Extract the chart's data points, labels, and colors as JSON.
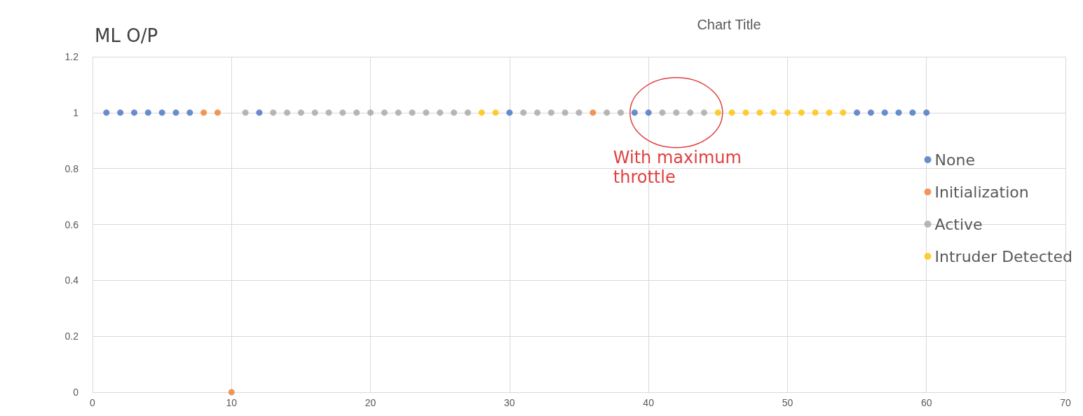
{
  "chart_data": {
    "type": "scatter",
    "title": "Chart Title",
    "ylabel": "ML O/P",
    "series": [
      {
        "name": "None",
        "color": "#4472c4",
        "x": [
          1,
          2,
          3,
          4,
          5,
          6,
          7,
          12,
          30,
          39,
          40,
          55,
          56,
          57,
          58,
          59,
          60
        ],
        "values": [
          1,
          1,
          1,
          1,
          1,
          1,
          1,
          1,
          1,
          1,
          1,
          1,
          1,
          1,
          1,
          1,
          1
        ]
      },
      {
        "name": "Initialization",
        "color": "#ed7d31",
        "x": [
          8,
          9,
          10,
          36
        ],
        "values": [
          1,
          1,
          0,
          1
        ]
      },
      {
        "name": "Active",
        "color": "#a5a5a5",
        "x": [
          11,
          13,
          14,
          15,
          16,
          17,
          18,
          19,
          20,
          21,
          22,
          23,
          24,
          25,
          26,
          27,
          31,
          32,
          33,
          34,
          35,
          37,
          38,
          41,
          42,
          43,
          44
        ],
        "values": [
          1,
          1,
          1,
          1,
          1,
          1,
          1,
          1,
          1,
          1,
          1,
          1,
          1,
          1,
          1,
          1,
          1,
          1,
          1,
          1,
          1,
          1,
          1,
          1,
          1,
          1,
          1
        ]
      },
      {
        "name": "Intruder Detected",
        "color": "#ffc000",
        "x": [
          28,
          29,
          45,
          46,
          47,
          48,
          49,
          50,
          51,
          52,
          53,
          54
        ],
        "values": [
          1,
          1,
          1,
          1,
          1,
          1,
          1,
          1,
          1,
          1,
          1,
          1
        ]
      }
    ],
    "xlim": [
      0,
      70
    ],
    "xticks": [
      0,
      10,
      20,
      30,
      40,
      50,
      60,
      70
    ],
    "ylim": [
      0,
      1.2
    ],
    "yticks": [
      0,
      0.2,
      0.4,
      0.6,
      0.8,
      1,
      1.2
    ],
    "grid": true,
    "legend": "right",
    "marker": "circle",
    "annotations": [
      {
        "text": "With maximum throttle",
        "x": 42,
        "y": 1
      }
    ]
  }
}
